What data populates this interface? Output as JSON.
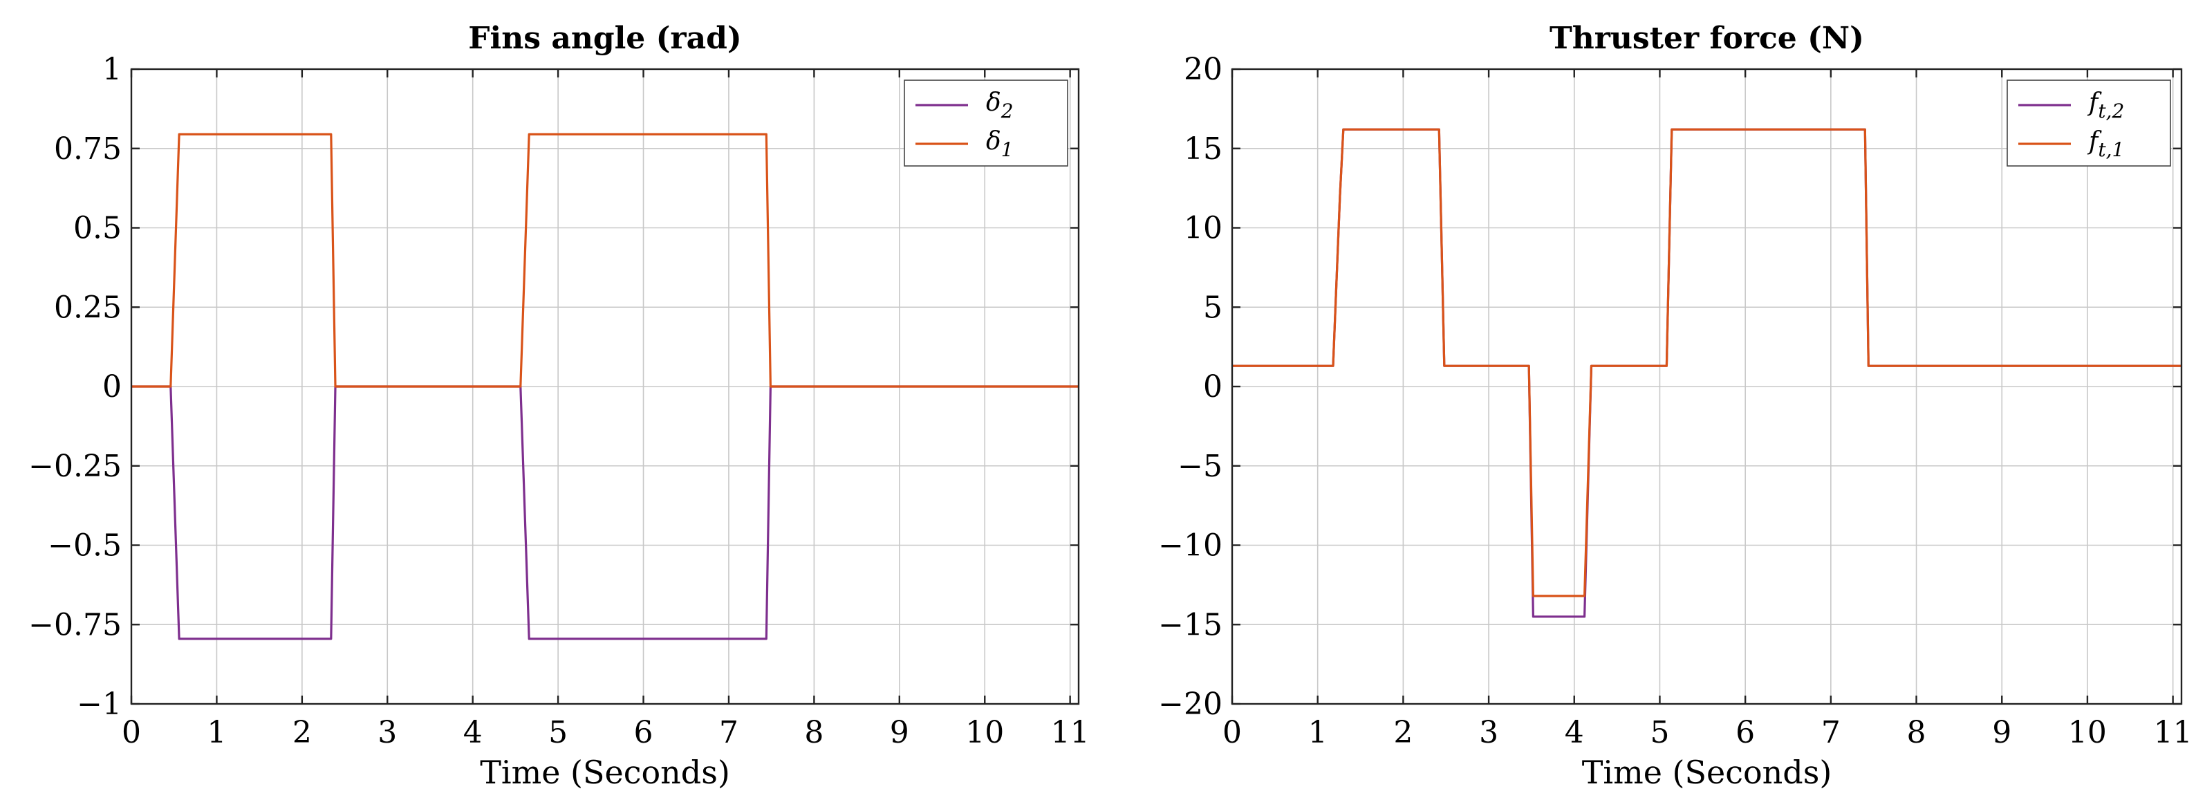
{
  "chart_data": [
    {
      "type": "line",
      "title": "Fins angle (rad)",
      "xlabel": "Time (Seconds)",
      "ylabel": "",
      "xlim": [
        0,
        11.1
      ],
      "ylim": [
        -1,
        1
      ],
      "xticks": [
        0,
        1,
        2,
        3,
        4,
        5,
        6,
        7,
        8,
        9,
        10,
        11
      ],
      "xtick_labels": [
        "0",
        "1",
        "2",
        "3",
        "4",
        "5",
        "6",
        "7",
        "8",
        "9",
        "10",
        "11"
      ],
      "yticks": [
        1,
        0.75,
        0.5,
        0.25,
        0,
        -0.25,
        -0.5,
        -0.75,
        -1
      ],
      "ytick_labels": [
        "1",
        "0.75",
        "0.5",
        "0.25",
        "0",
        "−0.25",
        "−0.5",
        "−0.75",
        "−1"
      ],
      "grid": true,
      "legend_position": "top-right",
      "series": [
        {
          "name": "δ2",
          "label_main": "δ",
          "label_sub": "2",
          "color": "#7e2f8e",
          "x": [
            0,
            0.46,
            0.56,
            2.34,
            2.39,
            4.56,
            4.66,
            7.44,
            7.49,
            11.1
          ],
          "y": [
            0,
            0,
            -0.795,
            -0.795,
            0,
            0,
            -0.795,
            -0.795,
            0,
            0
          ]
        },
        {
          "name": "δ1",
          "label_main": "δ",
          "label_sub": "1",
          "color": "#d95319",
          "x": [
            0,
            0.46,
            0.56,
            2.34,
            2.39,
            4.56,
            4.66,
            7.44,
            7.49,
            11.1
          ],
          "y": [
            0,
            0,
            0.795,
            0.795,
            0,
            0,
            0.795,
            0.795,
            0,
            0
          ]
        }
      ]
    },
    {
      "type": "line",
      "title": "Thruster force (N)",
      "xlabel": "Time (Seconds)",
      "ylabel": "",
      "xlim": [
        0,
        11.1
      ],
      "ylim": [
        -20,
        20
      ],
      "xticks": [
        0,
        1,
        2,
        3,
        4,
        5,
        6,
        7,
        8,
        9,
        10,
        11
      ],
      "xtick_labels": [
        "0",
        "1",
        "2",
        "3",
        "4",
        "5",
        "6",
        "7",
        "8",
        "9",
        "10",
        "11"
      ],
      "yticks": [
        20,
        15,
        10,
        5,
        0,
        -5,
        -10,
        -15,
        -20
      ],
      "ytick_labels": [
        "20",
        "15",
        "10",
        "5",
        "0",
        "−5",
        "−10",
        "−15",
        "−20"
      ],
      "grid": true,
      "legend_position": "top-right",
      "series": [
        {
          "name": "ft,2",
          "label_main": "f",
          "label_sub": "t,2",
          "color": "#7e2f8e",
          "x": [
            0,
            1.18,
            1.26,
            1.3,
            2.42,
            2.48,
            3.47,
            3.52,
            4.12,
            4.2,
            5.08,
            5.14,
            7.4,
            7.44,
            11.1
          ],
          "y": [
            1.3,
            1.3,
            12,
            16.2,
            16.2,
            1.3,
            1.3,
            -14.5,
            -14.5,
            1.3,
            1.3,
            16.2,
            16.2,
            1.3,
            1.3
          ]
        },
        {
          "name": "ft,1",
          "label_main": "f",
          "label_sub": "t,1",
          "color": "#d95319",
          "x": [
            0,
            1.18,
            1.26,
            1.3,
            2.42,
            2.48,
            3.47,
            3.52,
            4.12,
            4.2,
            5.08,
            5.14,
            7.4,
            7.44,
            11.1
          ],
          "y": [
            1.3,
            1.3,
            12,
            16.2,
            16.2,
            1.3,
            1.3,
            -13.2,
            -13.2,
            1.3,
            1.3,
            16.2,
            16.2,
            1.3,
            1.3
          ]
        }
      ]
    }
  ]
}
